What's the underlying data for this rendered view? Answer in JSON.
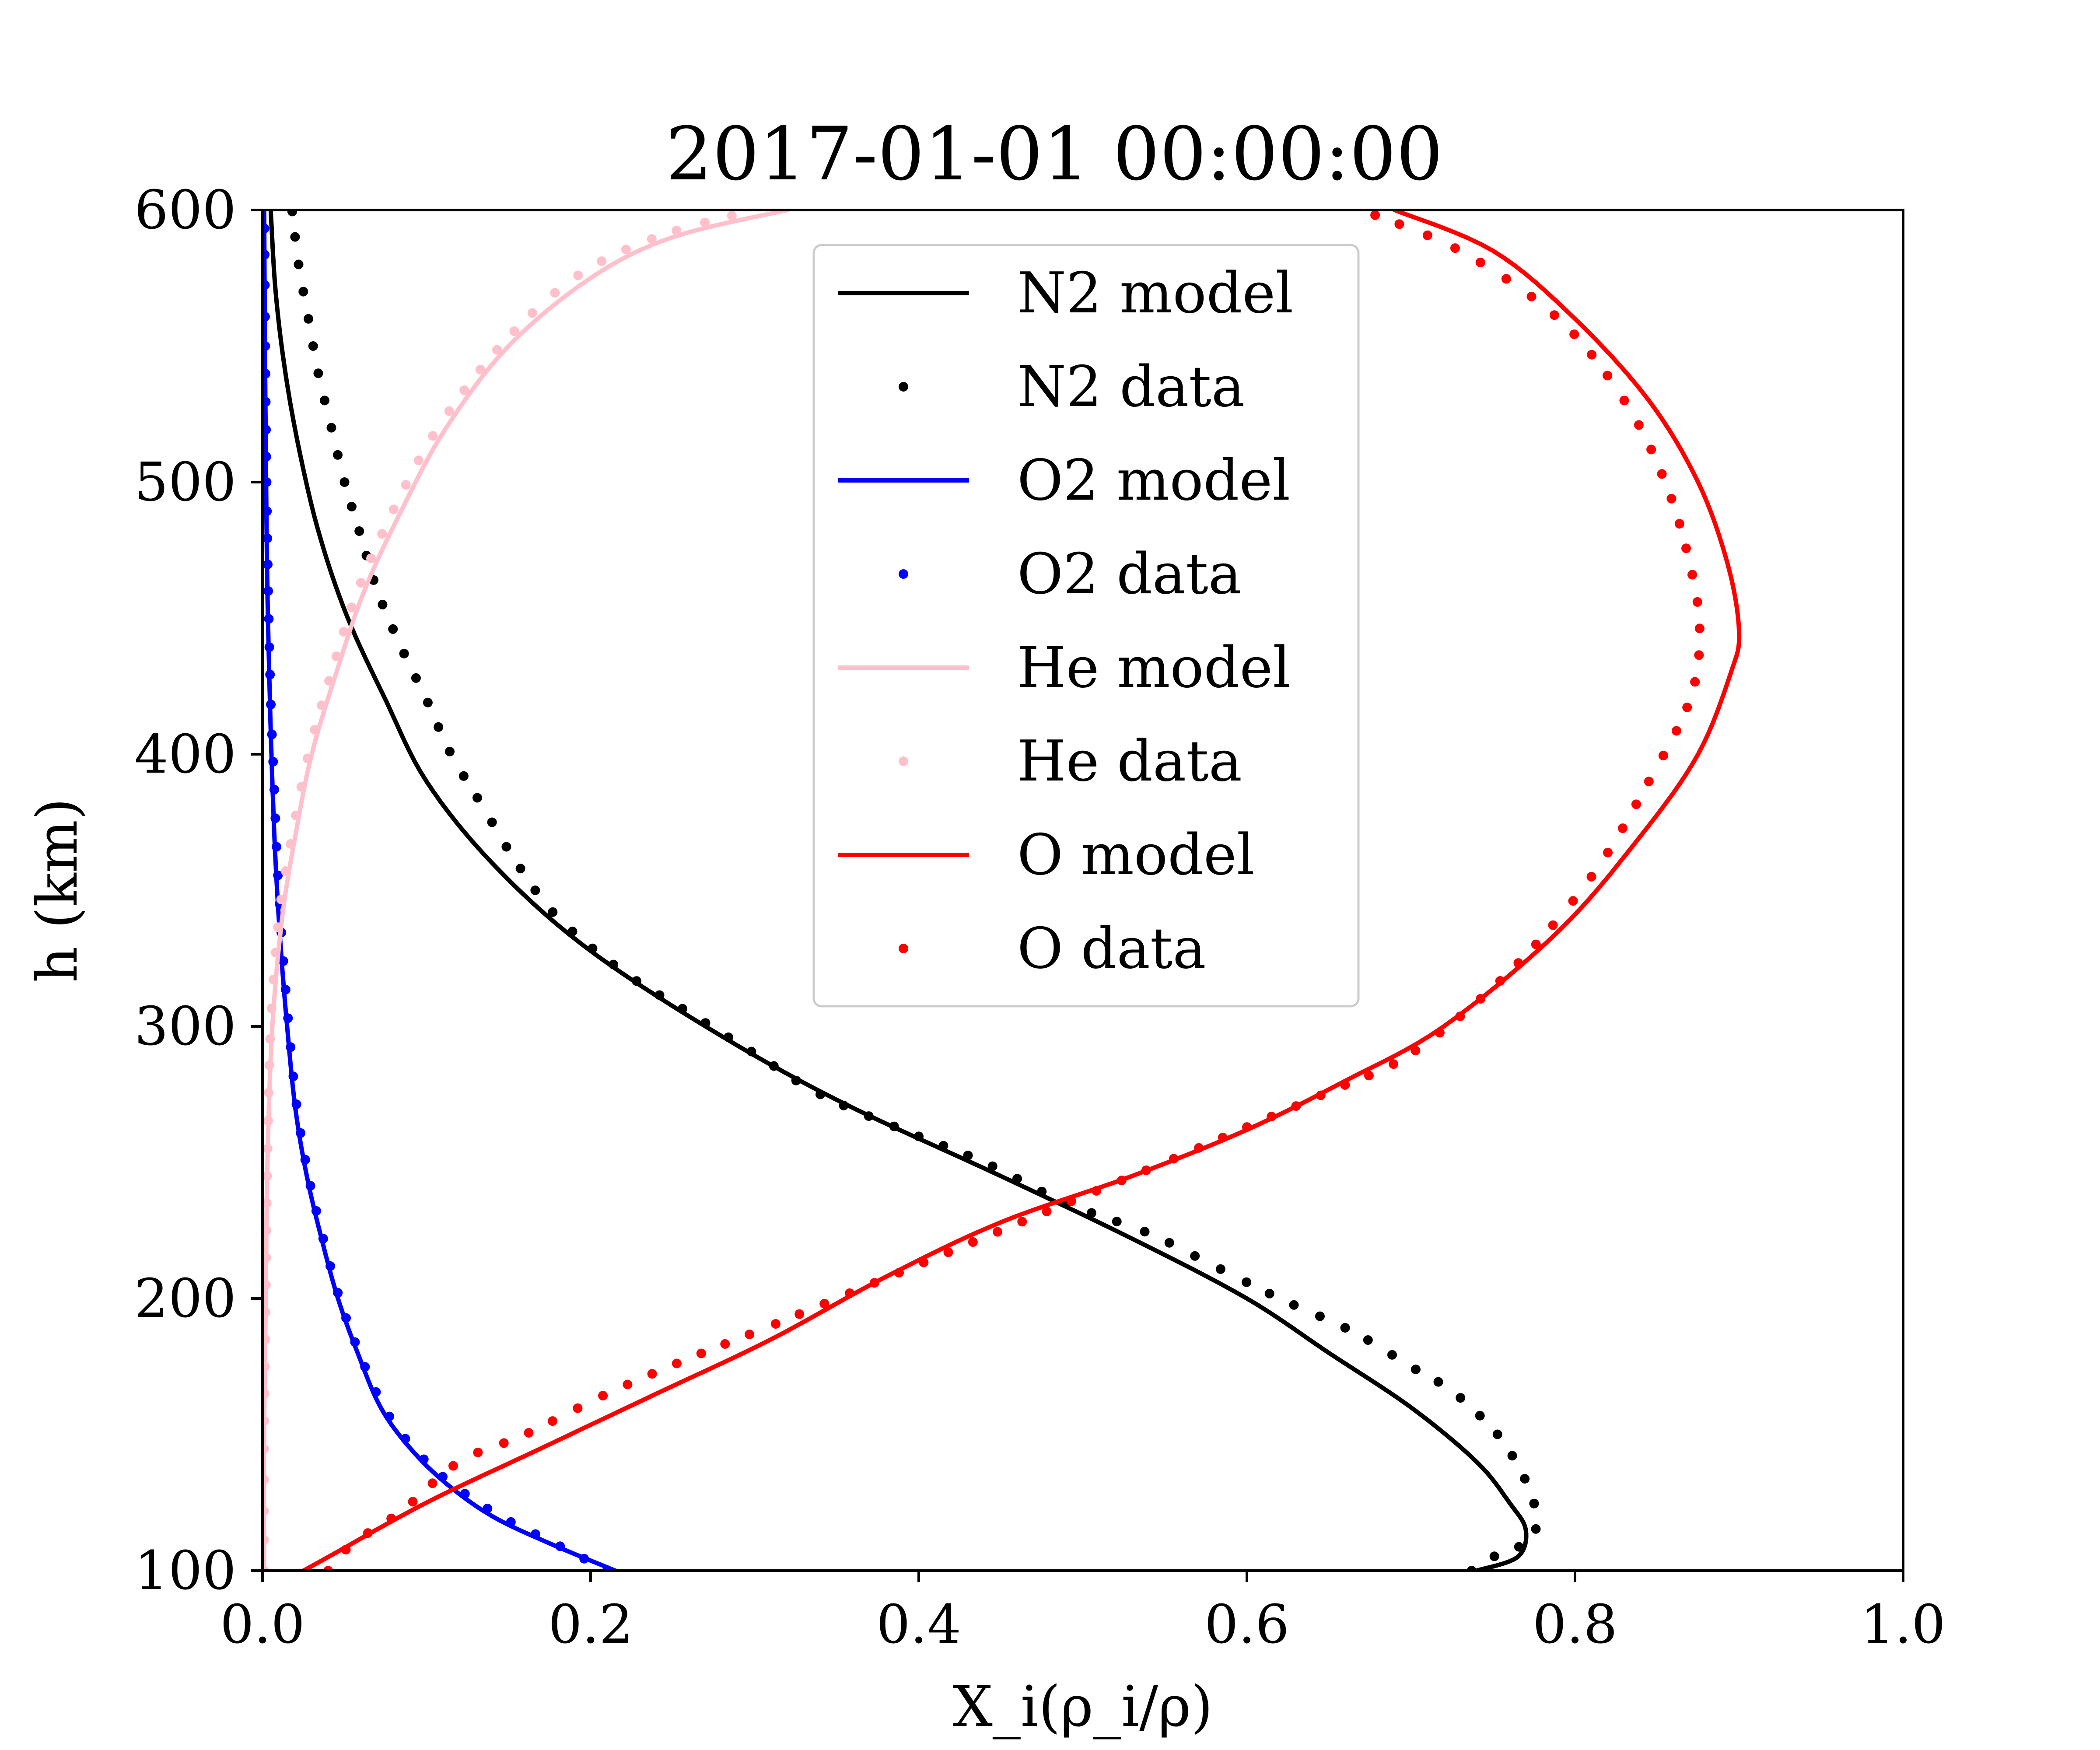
{
  "chart_data": {
    "type": "line",
    "title": "2017-01-01 00:00:00",
    "xlabel": "X_i(ρ_i/ρ)",
    "ylabel": "h (km)",
    "xlim": [
      0.0,
      1.0
    ],
    "ylim": [
      100,
      600
    ],
    "xticks": [
      "0.0",
      "0.2",
      "0.4",
      "0.6",
      "0.8",
      "1.0"
    ],
    "yticks": [
      "100",
      "200",
      "300",
      "400",
      "500",
      "600"
    ],
    "grid": false,
    "legend_position": "top-center",
    "series": [
      {
        "name": "N2 model",
        "kind": "line",
        "color": "#000000",
        "points": [
          [
            0.74,
            100
          ],
          [
            0.765,
            105
          ],
          [
            0.77,
            115
          ],
          [
            0.76,
            125
          ],
          [
            0.74,
            140
          ],
          [
            0.7,
            160
          ],
          [
            0.65,
            180
          ],
          [
            0.6,
            200
          ],
          [
            0.53,
            222
          ],
          [
            0.45,
            245
          ],
          [
            0.35,
            273
          ],
          [
            0.27,
            300
          ],
          [
            0.195,
            330
          ],
          [
            0.14,
            360
          ],
          [
            0.1,
            390
          ],
          [
            0.075,
            420
          ],
          [
            0.052,
            450
          ],
          [
            0.035,
            480
          ],
          [
            0.023,
            510
          ],
          [
            0.014,
            540
          ],
          [
            0.008,
            570
          ],
          [
            0.005,
            600
          ]
        ]
      },
      {
        "name": "N2 data",
        "kind": "scatter",
        "color": "#000000",
        "points": [
          [
            0.737,
            100
          ],
          [
            0.75,
            105
          ],
          [
            0.77,
            110
          ],
          [
            0.776,
            115
          ],
          [
            0.776,
            122
          ],
          [
            0.772,
            130
          ],
          [
            0.764,
            140
          ],
          [
            0.75,
            152
          ],
          [
            0.725,
            166
          ],
          [
            0.7,
            175
          ],
          [
            0.664,
            188
          ],
          [
            0.62,
            200
          ],
          [
            0.58,
            212
          ],
          [
            0.54,
            224
          ],
          [
            0.49,
            235
          ],
          [
            0.44,
            250
          ],
          [
            0.39,
            262
          ],
          [
            0.34,
            275
          ],
          [
            0.3,
            290
          ],
          [
            0.26,
            305
          ],
          [
            0.22,
            320
          ],
          [
            0.18,
            340
          ],
          [
            0.155,
            360
          ],
          [
            0.135,
            380
          ],
          [
            0.115,
            400
          ],
          [
            0.1,
            420
          ],
          [
            0.084,
            440
          ],
          [
            0.07,
            460
          ],
          [
            0.06,
            480
          ],
          [
            0.05,
            500
          ],
          [
            0.042,
            520
          ],
          [
            0.034,
            540
          ],
          [
            0.028,
            560
          ],
          [
            0.022,
            580
          ],
          [
            0.018,
            600
          ]
        ]
      },
      {
        "name": "O2 model",
        "kind": "line",
        "color": "#0000ff",
        "points": [
          [
            0.215,
            100
          ],
          [
            0.175,
            110
          ],
          [
            0.14,
            120
          ],
          [
            0.112,
            132
          ],
          [
            0.09,
            145
          ],
          [
            0.072,
            160
          ],
          [
            0.058,
            180
          ],
          [
            0.046,
            200
          ],
          [
            0.036,
            222
          ],
          [
            0.027,
            245
          ],
          [
            0.02,
            270
          ],
          [
            0.015,
            300
          ],
          [
            0.011,
            330
          ],
          [
            0.008,
            360
          ],
          [
            0.006,
            390
          ],
          [
            0.0045,
            420
          ],
          [
            0.003,
            460
          ],
          [
            0.0022,
            500
          ],
          [
            0.0015,
            550
          ],
          [
            0.001,
            600
          ]
        ]
      },
      {
        "name": "O2 data",
        "kind": "scatter",
        "color": "#0000ff",
        "points": [
          [
            0.21,
            100
          ],
          [
            0.178,
            110
          ],
          [
            0.145,
            120
          ],
          [
            0.115,
            132
          ],
          [
            0.092,
            145
          ],
          [
            0.074,
            160
          ],
          [
            0.059,
            180
          ],
          [
            0.047,
            200
          ],
          [
            0.037,
            222
          ],
          [
            0.028,
            245
          ],
          [
            0.021,
            270
          ],
          [
            0.016,
            300
          ],
          [
            0.012,
            330
          ],
          [
            0.009,
            360
          ],
          [
            0.007,
            390
          ],
          [
            0.005,
            420
          ],
          [
            0.0035,
            460
          ],
          [
            0.0025,
            500
          ],
          [
            0.0017,
            550
          ],
          [
            0.0012,
            600
          ]
        ]
      },
      {
        "name": "He model",
        "kind": "line",
        "color": "#ffc0cb",
        "points": [
          [
            0.001,
            100
          ],
          [
            0.001,
            150
          ],
          [
            0.002,
            200
          ],
          [
            0.003,
            250
          ],
          [
            0.006,
            300
          ],
          [
            0.012,
            340
          ],
          [
            0.02,
            370
          ],
          [
            0.03,
            400
          ],
          [
            0.045,
            430
          ],
          [
            0.062,
            460
          ],
          [
            0.085,
            490
          ],
          [
            0.112,
            520
          ],
          [
            0.15,
            550
          ],
          [
            0.2,
            575
          ],
          [
            0.25,
            590
          ],
          [
            0.32,
            600
          ]
        ]
      },
      {
        "name": "He data",
        "kind": "scatter",
        "color": "#ffc0cb",
        "points": [
          [
            0.001,
            100
          ],
          [
            0.001,
            150
          ],
          [
            0.002,
            200
          ],
          [
            0.003,
            250
          ],
          [
            0.005,
            300
          ],
          [
            0.01,
            340
          ],
          [
            0.018,
            370
          ],
          [
            0.028,
            400
          ],
          [
            0.042,
            430
          ],
          [
            0.058,
            460
          ],
          [
            0.08,
            490
          ],
          [
            0.107,
            520
          ],
          [
            0.145,
            550
          ],
          [
            0.19,
            575
          ],
          [
            0.24,
            590
          ],
          [
            0.3,
            600
          ]
        ]
      },
      {
        "name": "O model",
        "kind": "line",
        "color": "#ff0000",
        "points": [
          [
            0.025,
            100
          ],
          [
            0.04,
            105
          ],
          [
            0.1,
            125
          ],
          [
            0.17,
            145
          ],
          [
            0.24,
            165
          ],
          [
            0.31,
            185
          ],
          [
            0.38,
            208
          ],
          [
            0.45,
            228
          ],
          [
            0.53,
            245
          ],
          [
            0.6,
            262
          ],
          [
            0.66,
            280
          ],
          [
            0.72,
            300
          ],
          [
            0.79,
            335
          ],
          [
            0.84,
            370
          ],
          [
            0.875,
            400
          ],
          [
            0.895,
            430
          ],
          [
            0.9,
            445
          ],
          [
            0.893,
            470
          ],
          [
            0.875,
            500
          ],
          [
            0.845,
            530
          ],
          [
            0.8,
            560
          ],
          [
            0.75,
            585
          ],
          [
            0.69,
            600
          ]
        ]
      },
      {
        "name": "O data",
        "kind": "scatter",
        "color": "#ff0000",
        "points": [
          [
            0.04,
            100
          ],
          [
            0.055,
            110
          ],
          [
            0.085,
            122
          ],
          [
            0.12,
            140
          ],
          [
            0.16,
            150
          ],
          [
            0.21,
            165
          ],
          [
            0.26,
            178
          ],
          [
            0.31,
            190
          ],
          [
            0.37,
            205
          ],
          [
            0.43,
            220
          ],
          [
            0.49,
            235
          ],
          [
            0.55,
            250
          ],
          [
            0.6,
            263
          ],
          [
            0.65,
            276
          ],
          [
            0.7,
            290
          ],
          [
            0.76,
            320
          ],
          [
            0.81,
            355
          ],
          [
            0.845,
            390
          ],
          [
            0.87,
            420
          ],
          [
            0.876,
            445
          ],
          [
            0.87,
            470
          ],
          [
            0.855,
            500
          ],
          [
            0.83,
            530
          ],
          [
            0.79,
            560
          ],
          [
            0.73,
            585
          ],
          [
            0.67,
            600
          ]
        ]
      }
    ]
  }
}
